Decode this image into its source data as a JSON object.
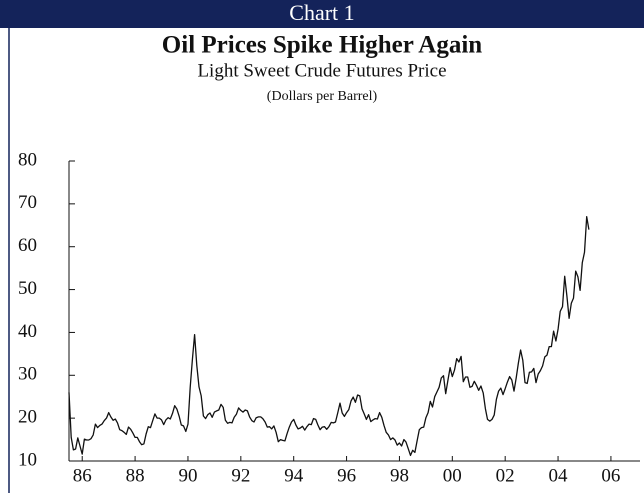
{
  "header": "Chart 1",
  "chart_data": {
    "type": "line",
    "title": "Oil Prices Spike Higher Again",
    "subtitle": "Light Sweet Crude Futures Price",
    "units": "(Dollars per Barrel)",
    "color": "#111111",
    "xlim": [
      1986,
      2007.6
    ],
    "ylim": [
      10,
      80
    ],
    "yticks": [
      10,
      20,
      30,
      40,
      50,
      60,
      70,
      80
    ],
    "xticks": [
      {
        "value": 1986.5,
        "label": "86"
      },
      {
        "value": 1988.5,
        "label": "88"
      },
      {
        "value": 1990.5,
        "label": "90"
      },
      {
        "value": 1992.5,
        "label": "92"
      },
      {
        "value": 1994.5,
        "label": "94"
      },
      {
        "value": 1996.5,
        "label": "96"
      },
      {
        "value": 1998.5,
        "label": "98"
      },
      {
        "value": 2000.5,
        "label": "00"
      },
      {
        "value": 2002.5,
        "label": "02"
      },
      {
        "value": 2004.5,
        "label": "04"
      },
      {
        "value": 2006.5,
        "label": "06"
      }
    ],
    "x": [
      1986,
      1986.083,
      1986.167,
      1986.25,
      1986.333,
      1986.417,
      1986.5,
      1986.583,
      1986.667,
      1986.75,
      1986.833,
      1986.917,
      1987,
      1987.083,
      1987.167,
      1987.25,
      1987.333,
      1987.417,
      1987.5,
      1987.583,
      1987.667,
      1987.75,
      1987.833,
      1987.917,
      1988,
      1988.083,
      1988.167,
      1988.25,
      1988.333,
      1988.417,
      1988.5,
      1988.583,
      1988.667,
      1988.75,
      1988.833,
      1988.917,
      1989,
      1989.083,
      1989.167,
      1989.25,
      1989.333,
      1989.417,
      1989.5,
      1989.583,
      1989.667,
      1989.75,
      1989.833,
      1989.917,
      1990,
      1990.083,
      1990.167,
      1990.25,
      1990.333,
      1990.417,
      1990.5,
      1990.583,
      1990.667,
      1990.75,
      1990.833,
      1990.917,
      1991,
      1991.083,
      1991.167,
      1991.25,
      1991.333,
      1991.417,
      1991.5,
      1991.583,
      1991.667,
      1991.75,
      1991.833,
      1991.917,
      1992,
      1992.083,
      1992.167,
      1992.25,
      1992.333,
      1992.417,
      1992.5,
      1992.583,
      1992.667,
      1992.75,
      1992.833,
      1992.917,
      1993,
      1993.083,
      1993.167,
      1993.25,
      1993.333,
      1993.417,
      1993.5,
      1993.583,
      1993.667,
      1993.75,
      1993.833,
      1993.917,
      1994,
      1994.083,
      1994.167,
      1994.25,
      1994.333,
      1994.417,
      1994.5,
      1994.583,
      1994.667,
      1994.75,
      1994.833,
      1994.917,
      1995,
      1995.083,
      1995.167,
      1995.25,
      1995.333,
      1995.417,
      1995.5,
      1995.583,
      1995.667,
      1995.75,
      1995.833,
      1995.917,
      1996,
      1996.083,
      1996.167,
      1996.25,
      1996.333,
      1996.417,
      1996.5,
      1996.583,
      1996.667,
      1996.75,
      1996.833,
      1996.917,
      1997,
      1997.083,
      1997.167,
      1997.25,
      1997.333,
      1997.417,
      1997.5,
      1997.583,
      1997.667,
      1997.75,
      1997.833,
      1997.917,
      1998,
      1998.083,
      1998.167,
      1998.25,
      1998.333,
      1998.417,
      1998.5,
      1998.583,
      1998.667,
      1998.75,
      1998.833,
      1998.917,
      1999,
      1999.083,
      1999.167,
      1999.25,
      1999.333,
      1999.417,
      1999.5,
      1999.583,
      1999.667,
      1999.75,
      1999.833,
      1999.917,
      2000,
      2000.083,
      2000.167,
      2000.25,
      2000.333,
      2000.417,
      2000.5,
      2000.583,
      2000.667,
      2000.75,
      2000.833,
      2000.917,
      2001,
      2001.083,
      2001.167,
      2001.25,
      2001.333,
      2001.417,
      2001.5,
      2001.583,
      2001.667,
      2001.75,
      2001.833,
      2001.917,
      2002,
      2002.083,
      2002.167,
      2002.25,
      2002.333,
      2002.417,
      2002.5,
      2002.583,
      2002.667,
      2002.75,
      2002.833,
      2002.917,
      2003,
      2003.083,
      2003.167,
      2003.25,
      2003.333,
      2003.417,
      2003.5,
      2003.583,
      2003.667,
      2003.75,
      2003.833,
      2003.917,
      2004,
      2004.083,
      2004.167,
      2004.25,
      2004.333,
      2004.417,
      2004.5,
      2004.583,
      2004.667,
      2004.75,
      2004.833,
      2004.917,
      2005,
      2005.083,
      2005.167,
      2005.25,
      2005.333,
      2005.417,
      2005.5,
      2005.583,
      2005.667
    ],
    "values": [
      26,
      15.5,
      12.6,
      12.8,
      15.4,
      13.5,
      11.6,
      15.1,
      14.9,
      14.9,
      15.2,
      16.1,
      18.6,
      17.8,
      18.3,
      18.6,
      19.4,
      20,
      21.3,
      20.3,
      19.5,
      19.8,
      18.9,
      17.3,
      17.1,
      16.7,
      16.2,
      17.9,
      17.4,
      16.5,
      15.5,
      15.5,
      14.5,
      13.8,
      14,
      16.3,
      18,
      17.8,
      19.4,
      21,
      20,
      20,
      19.6,
      18.5,
      19.6,
      20.1,
      19.8,
      21.1,
      22.9,
      22.1,
      20.4,
      18.4,
      18.2,
      16.9,
      18.6,
      27.2,
      33.7,
      39.5,
      32.3,
      27.3,
      25.2,
      20.5,
      19.9,
      20.8,
      21.2,
      20.2,
      21.4,
      21.7,
      21.9,
      23.2,
      22.5,
      19.5,
      18.8,
      19,
      18.9,
      20.2,
      20.9,
      22.4,
      21.8,
      21.4,
      21.9,
      21.7,
      20.3,
      19.4,
      19.1,
      20.1,
      20.3,
      20.3,
      19.9,
      19.1,
      17.9,
      18,
      17.5,
      18.2,
      16.7,
      14.5,
      15,
      14.8,
      14.7,
      16.4,
      17.9,
      19.1,
      19.7,
      18.4,
      17.5,
      17.7,
      18.1,
      17.2,
      18,
      18.6,
      18.5,
      19.9,
      19.7,
      18.4,
      17.3,
      17.9,
      18,
      17.4,
      18,
      19,
      18.9,
      19.1,
      21.3,
      23.5,
      21.2,
      20.4,
      21.3,
      22,
      24,
      24.9,
      23.7,
      25.4,
      25.2,
      22.2,
      21,
      19.7,
      20.8,
      19.2,
      19.6,
      19.9,
      19.8,
      21.3,
      20.2,
      18.3,
      16.7,
      16.1,
      15,
      15.4,
      14.9,
      13.7,
      14.2,
      13.5,
      15,
      14.4,
      12.9,
      11.3,
      12.5,
      12,
      14.7,
      17.3,
      17.8,
      17.9,
      20.1,
      21.3,
      23.9,
      22.6,
      25,
      26.1,
      27.2,
      29.4,
      29.9,
      25.7,
      28.8,
      31.8,
      29.7,
      31.2,
      33.9,
      33.1,
      34.4,
      28.5,
      29.6,
      29.6,
      27.2,
      27.4,
      28.6,
      27.6,
      26.5,
      27.5,
      25.9,
      22.2,
      19.7,
      19.3,
      19.7,
      20.7,
      24.4,
      26.3,
      27,
      25.5,
      26.9,
      28.4,
      29.7,
      28.9,
      26.3,
      29.4,
      32.9,
      35.9,
      33.5,
      28.3,
      28.1,
      30.7,
      30.8,
      31.6,
      28.3,
      30.3,
      31.1,
      32.2,
      34.3,
      34.7,
      36.7,
      36.7,
      40.3,
      38,
      40.8,
      44.9,
      46,
      53.1,
      48.5,
      43.3,
      46.8,
      48,
      54.3,
      53,
      49.8,
      56.3,
      58.7,
      67,
      64
    ]
  }
}
